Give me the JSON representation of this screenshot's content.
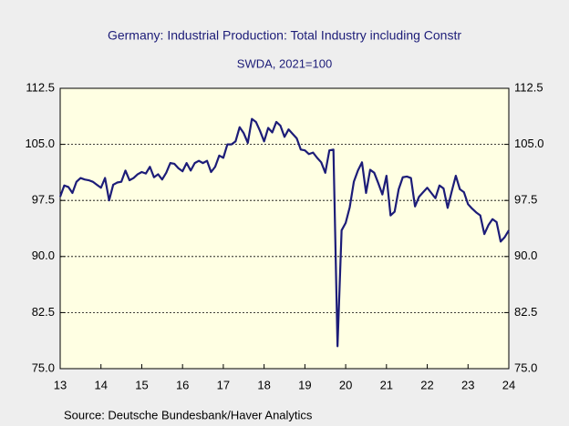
{
  "chart_data": {
    "type": "line",
    "title": "Germany: Industrial Production: Total Industry including Constr",
    "subtitle": "SWDA, 2021=100",
    "source": "Source:  Deutsche Bundesbank/Haver Analytics",
    "color": "#1c1c78",
    "grid": true,
    "x": [
      2013.0,
      2013.1,
      2013.2,
      2013.3,
      2013.4,
      2013.5,
      2013.6,
      2013.7,
      2013.8,
      2013.9,
      2014.0,
      2014.1,
      2014.2,
      2014.3,
      2014.4,
      2014.5,
      2014.6,
      2014.7,
      2014.8,
      2014.9,
      2015.0,
      2015.1,
      2015.2,
      2015.3,
      2015.4,
      2015.5,
      2015.6,
      2015.7,
      2015.8,
      2015.9,
      2016.0,
      2016.1,
      2016.2,
      2016.3,
      2016.4,
      2016.5,
      2016.6,
      2016.7,
      2016.8,
      2016.9,
      2017.0,
      2017.1,
      2017.2,
      2017.3,
      2017.4,
      2017.5,
      2017.6,
      2017.7,
      2017.8,
      2017.9,
      2018.0,
      2018.1,
      2018.2,
      2018.3,
      2018.4,
      2018.5,
      2018.6,
      2018.7,
      2018.8,
      2018.9,
      2019.0,
      2019.1,
      2019.2,
      2019.3,
      2019.4,
      2019.5,
      2019.6,
      2019.7,
      2019.8,
      2019.9,
      2020.0,
      2020.1,
      2020.2,
      2020.3,
      2020.4,
      2020.5,
      2020.6,
      2020.7,
      2020.8,
      2020.9,
      2021.0,
      2021.1,
      2021.2,
      2021.3,
      2021.4,
      2021.5,
      2021.6,
      2021.7,
      2021.8,
      2021.9,
      2022.0,
      2022.1,
      2022.2,
      2022.3,
      2022.4,
      2022.5,
      2022.6,
      2022.7,
      2022.8,
      2022.9,
      2023.0,
      2023.1,
      2023.2,
      2023.3,
      2023.4,
      2023.5,
      2023.6,
      2023.7,
      2023.8,
      2023.9,
      2024.0
    ],
    "values": [
      98.0,
      99.5,
      99.3,
      98.5,
      100.0,
      100.5,
      100.3,
      100.2,
      100.0,
      99.6,
      99.2,
      100.5,
      97.5,
      99.6,
      99.9,
      100.0,
      101.5,
      100.2,
      100.5,
      101.0,
      101.3,
      101.1,
      102.0,
      100.6,
      101.0,
      100.3,
      101.2,
      102.5,
      102.4,
      101.8,
      101.4,
      102.5,
      101.5,
      102.5,
      102.8,
      102.5,
      102.8,
      101.3,
      102.0,
      103.5,
      103.2,
      105.0,
      105.0,
      105.4,
      107.3,
      106.5,
      105.2,
      108.4,
      108.0,
      106.8,
      105.4,
      107.2,
      106.6,
      108.0,
      107.5,
      106.0,
      107.0,
      106.4,
      105.8,
      104.3,
      104.2,
      103.7,
      103.9,
      103.2,
      102.6,
      101.2,
      104.2,
      104.3,
      78.0,
      93.5,
      94.5,
      96.6,
      100.0,
      101.5,
      102.6,
      98.5,
      101.6,
      101.2,
      99.8,
      98.3,
      100.8,
      95.5,
      96.0,
      99.0,
      100.6,
      100.7,
      100.5,
      96.7,
      98.0,
      98.6,
      99.2,
      98.5,
      97.8,
      99.5,
      99.1,
      96.5,
      98.7,
      100.8,
      99.0,
      98.6,
      97.0,
      96.4,
      95.9,
      95.5,
      93.0,
      94.2,
      95.0,
      94.6,
      92.0,
      92.6,
      93.5
    ],
    "xlim": [
      2013,
      2024
    ],
    "xticks": [
      {
        "value": 2013,
        "label": "13"
      },
      {
        "value": 2014,
        "label": "14"
      },
      {
        "value": 2015,
        "label": "15"
      },
      {
        "value": 2016,
        "label": "16"
      },
      {
        "value": 2017,
        "label": "17"
      },
      {
        "value": 2018,
        "label": "18"
      },
      {
        "value": 2019,
        "label": "19"
      },
      {
        "value": 2020,
        "label": "20"
      },
      {
        "value": 2021,
        "label": "21"
      },
      {
        "value": 2022,
        "label": "22"
      },
      {
        "value": 2023,
        "label": "23"
      },
      {
        "value": 2024,
        "label": "24"
      }
    ],
    "ylim": [
      75,
      112.5
    ],
    "yticks": [
      {
        "value": 75,
        "label": "75.0"
      },
      {
        "value": 82.5,
        "label": "82.5"
      },
      {
        "value": 90,
        "label": "90.0"
      },
      {
        "value": 97.5,
        "label": "97.5"
      },
      {
        "value": 105,
        "label": "105.0"
      },
      {
        "value": 112.5,
        "label": "112.5"
      }
    ],
    "y2lim": [
      75,
      112.5
    ],
    "y2ticks": [
      {
        "value": 75,
        "label": "75.0"
      },
      {
        "value": 82.5,
        "label": "82.5"
      },
      {
        "value": 90,
        "label": "90.0"
      },
      {
        "value": 97.5,
        "label": "97.5"
      },
      {
        "value": 105,
        "label": "105.0"
      },
      {
        "value": 112.5,
        "label": "112.5"
      }
    ]
  }
}
